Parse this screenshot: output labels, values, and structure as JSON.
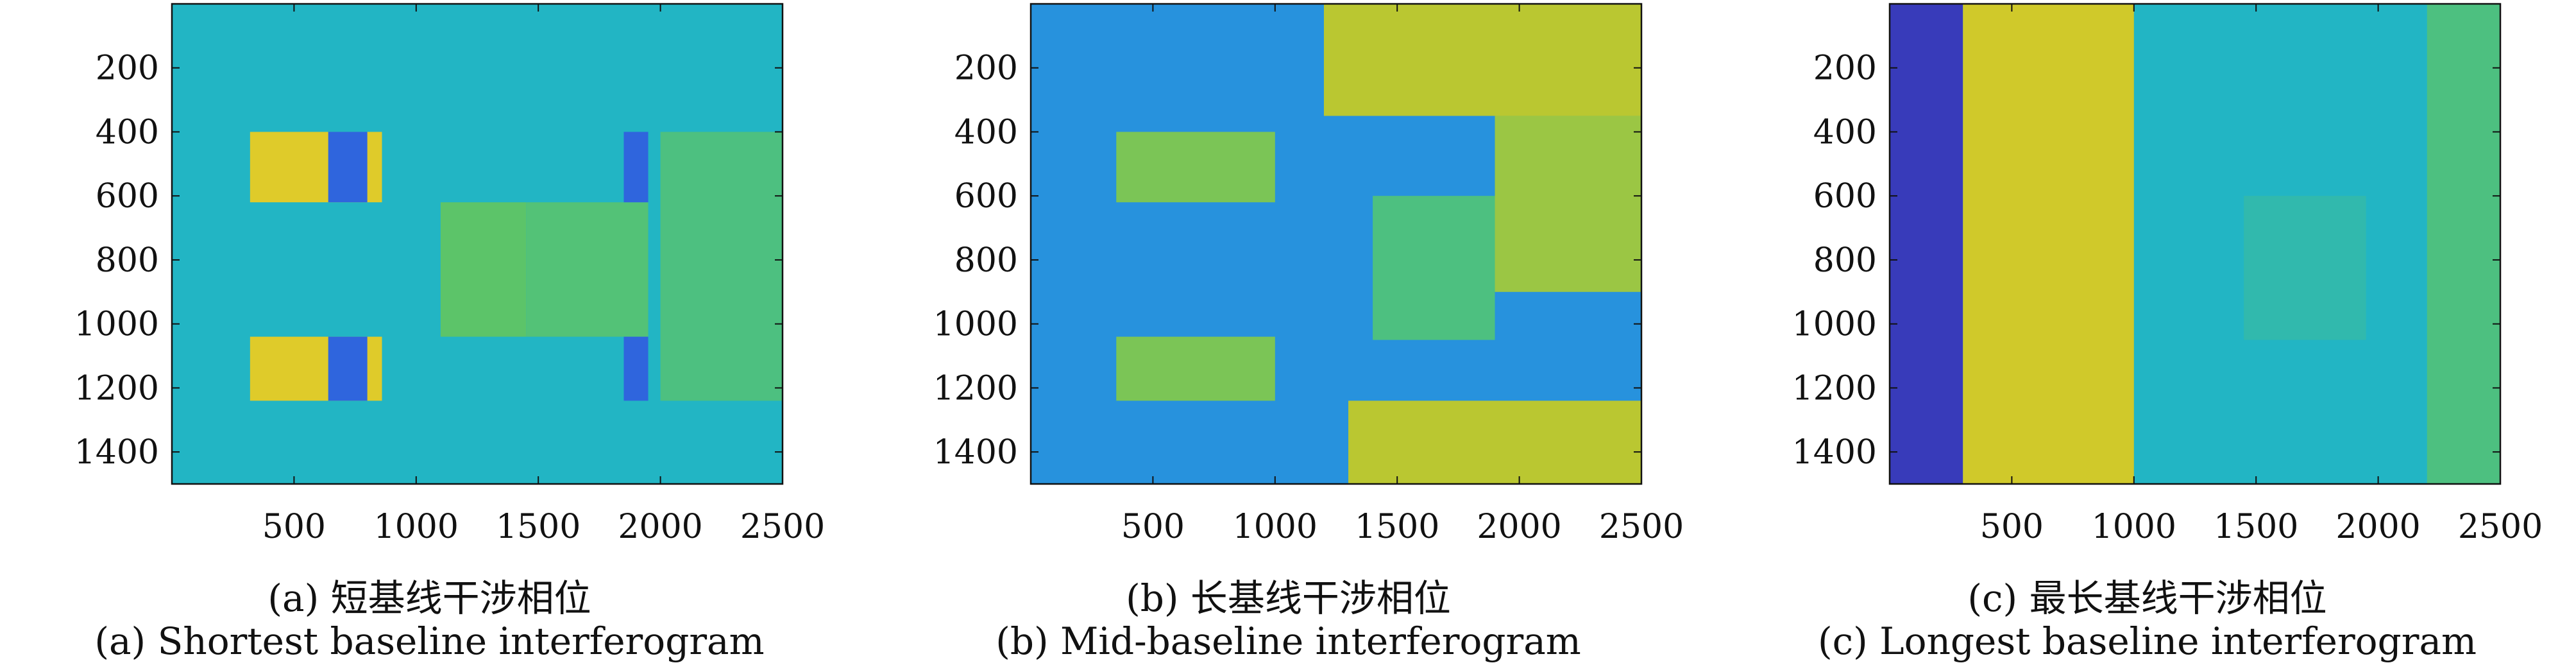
{
  "figure": {
    "panels": [
      {
        "caption_zh": "(a) 短基线干涉相位",
        "caption_en": "(a) Shortest baseline interferogram"
      },
      {
        "caption_zh": "(b) 长基线干涉相位",
        "caption_en": "(b) Mid-baseline interferogram"
      },
      {
        "caption_zh": "(c) 最长基线干涉相位",
        "caption_en": "(c) Longest baseline interferogram"
      }
    ]
  },
  "colors": {
    "dark_blue": "#3d26a8",
    "blue": "#2a7aee",
    "teal": "#22b5c4",
    "green": "#5cc469",
    "yellow_green": "#c7c72a",
    "yellow": "#fdd12b",
    "axis": "#111111"
  },
  "chart_data": [
    {
      "type": "heatmap",
      "title": "",
      "xlabel": "",
      "ylabel": "",
      "xlim": [
        0,
        2500
      ],
      "ylim": [
        1500,
        0
      ],
      "y_reversed": true,
      "colormap": "parula",
      "xticks": [
        500,
        1000,
        1500,
        2000,
        2500
      ],
      "yticks": [
        200,
        400,
        600,
        800,
        1000,
        1200,
        1400
      ],
      "grid": false,
      "description_regions": [
        {
          "x": [
            0,
            2500
          ],
          "y": [
            0,
            1500
          ],
          "value": 0.45
        },
        {
          "x": [
            320,
            860
          ],
          "y": [
            400,
            620
          ],
          "value": 0.9
        },
        {
          "x": [
            320,
            860
          ],
          "y": [
            1040,
            1240
          ],
          "value": 0.9
        },
        {
          "x": [
            640,
            800
          ],
          "y": [
            400,
            620
          ],
          "value": 0.15
        },
        {
          "x": [
            640,
            800
          ],
          "y": [
            1040,
            1240
          ],
          "value": 0.15
        },
        {
          "x": [
            1100,
            1450
          ],
          "y": [
            620,
            1040
          ],
          "value": 0.65
        },
        {
          "x": [
            1450,
            1950
          ],
          "y": [
            620,
            1040
          ],
          "value": 0.62
        },
        {
          "x": [
            1850,
            1950
          ],
          "y": [
            400,
            620
          ],
          "value": 0.15
        },
        {
          "x": [
            1850,
            1950
          ],
          "y": [
            1040,
            1240
          ],
          "value": 0.15
        },
        {
          "x": [
            2000,
            2500
          ],
          "y": [
            400,
            1240
          ],
          "value": 0.6
        }
      ]
    },
    {
      "type": "heatmap",
      "title": "",
      "xlabel": "",
      "ylabel": "",
      "xlim": [
        0,
        2500
      ],
      "ylim": [
        1500,
        0
      ],
      "y_reversed": true,
      "colormap": "parula",
      "xticks": [
        500,
        1000,
        1500,
        2000,
        2500
      ],
      "yticks": [
        200,
        400,
        600,
        800,
        1000,
        1200,
        1400
      ],
      "grid": false,
      "description_regions": [
        {
          "x": [
            0,
            2500
          ],
          "y": [
            0,
            1500
          ],
          "value": 0.3
        },
        {
          "x": [
            1200,
            2500
          ],
          "y": [
            0,
            350
          ],
          "value": 0.8
        },
        {
          "x": [
            1900,
            2500
          ],
          "y": [
            350,
            900
          ],
          "value": 0.75
        },
        {
          "x": [
            1300,
            2500
          ],
          "y": [
            1240,
            1500
          ],
          "value": 0.8
        },
        {
          "x": [
            1400,
            1900
          ],
          "y": [
            600,
            1050
          ],
          "value": 0.6
        },
        {
          "x": [
            350,
            1000
          ],
          "y": [
            400,
            620
          ],
          "value": 0.7
        },
        {
          "x": [
            350,
            1000
          ],
          "y": [
            1040,
            1240
          ],
          "value": 0.7
        }
      ]
    },
    {
      "type": "heatmap",
      "title": "",
      "xlabel": "",
      "ylabel": "",
      "xlim": [
        0,
        2500
      ],
      "ylim": [
        1500,
        0
      ],
      "y_reversed": true,
      "colormap": "parula",
      "xticks": [
        500,
        1000,
        1500,
        2000,
        2500
      ],
      "yticks": [
        200,
        400,
        600,
        800,
        1000,
        1200,
        1400
      ],
      "grid": false,
      "description_regions": [
        {
          "x": [
            0,
            2500
          ],
          "y": [
            0,
            1500
          ],
          "value": 0.45
        },
        {
          "x": [
            0,
            300
          ],
          "y": [
            0,
            1500
          ],
          "value": 0.05
        },
        {
          "x": [
            300,
            1000
          ],
          "y": [
            0,
            1500
          ],
          "value": 0.85
        },
        {
          "x": [
            1450,
            1950
          ],
          "y": [
            600,
            1050
          ],
          "value": 0.5
        },
        {
          "x": [
            2200,
            2500
          ],
          "y": [
            0,
            1500
          ],
          "value": 0.6
        }
      ]
    }
  ]
}
